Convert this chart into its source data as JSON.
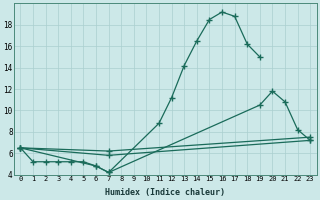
{
  "xlabel": "Humidex (Indice chaleur)",
  "bg_color": "#cce8e8",
  "grid_color": "#aacfcf",
  "line_color": "#1a6b5a",
  "xlim": [
    -0.5,
    23.5
  ],
  "ylim": [
    4,
    20
  ],
  "yticks": [
    4,
    6,
    8,
    10,
    12,
    14,
    16,
    18
  ],
  "xticks": [
    0,
    1,
    2,
    3,
    4,
    5,
    6,
    7,
    8,
    9,
    10,
    11,
    12,
    13,
    14,
    15,
    16,
    17,
    18,
    19,
    20,
    21,
    22,
    23
  ],
  "line1_x": [
    0,
    1,
    2,
    3,
    4,
    5,
    6,
    7,
    11,
    12,
    13,
    14,
    15,
    16,
    17,
    18,
    19
  ],
  "line1_y": [
    6.5,
    5.2,
    5.2,
    5.2,
    5.2,
    5.2,
    4.8,
    4.2,
    8.8,
    11.2,
    14.2,
    16.5,
    18.5,
    19.2,
    18.8,
    16.2,
    15.0
  ],
  "line2_x": [
    0,
    6,
    7,
    19,
    20,
    21,
    22,
    23
  ],
  "line2_y": [
    6.5,
    4.8,
    4.2,
    10.5,
    11.8,
    10.8,
    8.2,
    7.2
  ],
  "line3_x": [
    0,
    7,
    23
  ],
  "line3_y": [
    6.5,
    5.8,
    7.2
  ],
  "line4_x": [
    0,
    7,
    23
  ],
  "line4_y": [
    6.5,
    6.2,
    7.5
  ]
}
